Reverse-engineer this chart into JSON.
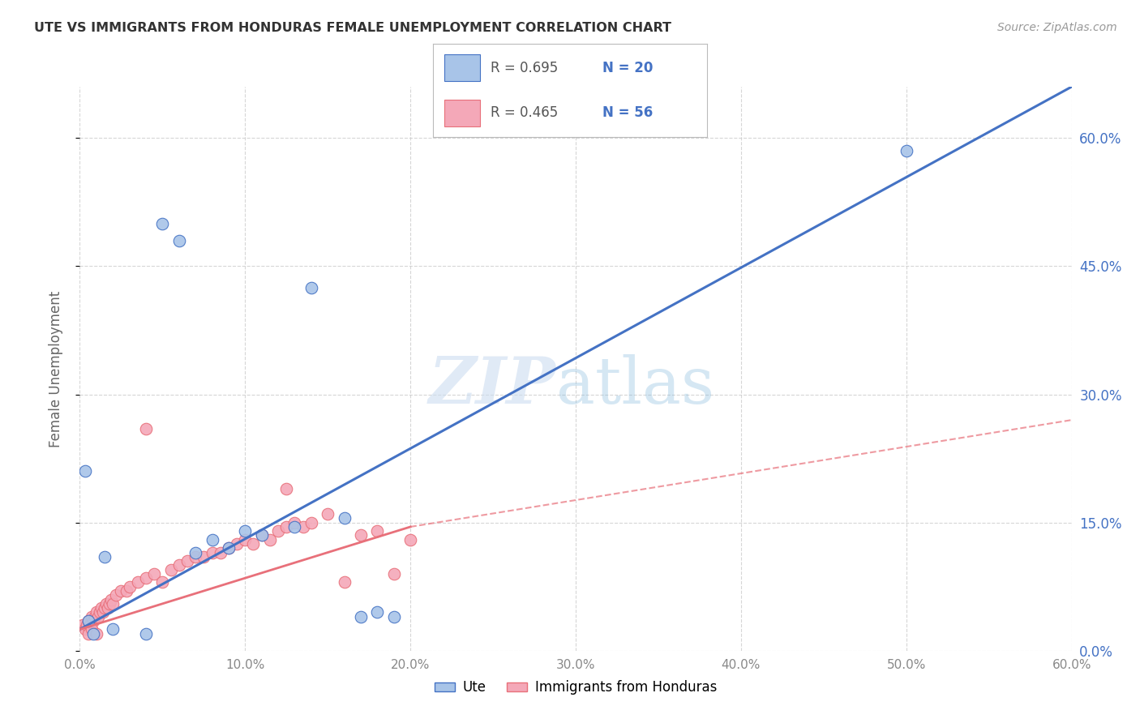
{
  "title": "UTE VS IMMIGRANTS FROM HONDURAS FEMALE UNEMPLOYMENT CORRELATION CHART",
  "source": "Source: ZipAtlas.com",
  "ylabel": "Female Unemployment",
  "ute_color": "#a8c4e8",
  "hn_color": "#f4a8b8",
  "ute_line_color": "#4472c4",
  "hn_line_color": "#e8707a",
  "ytick_vals": [
    0,
    15,
    30,
    45,
    60
  ],
  "xtick_vals": [
    0,
    10,
    20,
    30,
    40,
    50,
    60
  ],
  "xlim": [
    0,
    60
  ],
  "ylim": [
    0,
    66
  ],
  "background_color": "#ffffff",
  "grid_color": "#cccccc",
  "ute_scatter_x": [
    0.3,
    0.5,
    1.5,
    2.0,
    4.0,
    5.0,
    6.0,
    7.0,
    8.0,
    9.0,
    10.0,
    11.0,
    13.0,
    14.0,
    16.0,
    17.0,
    18.0,
    19.0,
    50.0,
    0.8
  ],
  "ute_scatter_y": [
    21.0,
    3.5,
    11.0,
    2.5,
    2.0,
    50.0,
    48.0,
    11.5,
    13.0,
    12.0,
    14.0,
    13.5,
    14.5,
    42.5,
    15.5,
    4.0,
    4.5,
    4.0,
    58.5,
    2.0
  ],
  "hn_scatter_x": [
    0.2,
    0.3,
    0.4,
    0.5,
    0.6,
    0.7,
    0.8,
    0.9,
    1.0,
    1.1,
    1.2,
    1.3,
    1.4,
    1.5,
    1.6,
    1.7,
    1.8,
    1.9,
    2.0,
    2.2,
    2.5,
    2.8,
    3.0,
    3.5,
    4.0,
    4.5,
    5.0,
    5.5,
    6.0,
    6.5,
    7.0,
    7.5,
    8.0,
    8.5,
    9.0,
    9.5,
    10.0,
    10.5,
    11.0,
    11.5,
    12.0,
    12.5,
    13.0,
    13.5,
    14.0,
    15.0,
    16.0,
    17.0,
    18.0,
    19.0,
    20.0,
    4.0,
    0.5,
    0.7,
    12.5,
    1.0
  ],
  "hn_scatter_y": [
    3.0,
    2.5,
    3.0,
    3.5,
    3.0,
    4.0,
    3.5,
    4.0,
    4.5,
    4.0,
    4.5,
    5.0,
    4.5,
    5.0,
    5.5,
    5.0,
    5.5,
    6.0,
    5.5,
    6.5,
    7.0,
    7.0,
    7.5,
    8.0,
    8.5,
    9.0,
    8.0,
    9.5,
    10.0,
    10.5,
    11.0,
    11.0,
    11.5,
    11.5,
    12.0,
    12.5,
    13.0,
    12.5,
    13.5,
    13.0,
    14.0,
    14.5,
    15.0,
    14.5,
    15.0,
    16.0,
    8.0,
    13.5,
    14.0,
    9.0,
    13.0,
    26.0,
    2.0,
    2.5,
    19.0,
    2.0
  ],
  "ute_line_x0": 0,
  "ute_line_y0": 2.5,
  "ute_line_x1": 60,
  "ute_line_y1": 66,
  "hn_solid_x0": 0,
  "hn_solid_y0": 2.5,
  "hn_solid_x1": 20,
  "hn_solid_y1": 14.5,
  "hn_dash_x0": 20,
  "hn_dash_y0": 14.5,
  "hn_dash_x1": 60,
  "hn_dash_y1": 27.0
}
